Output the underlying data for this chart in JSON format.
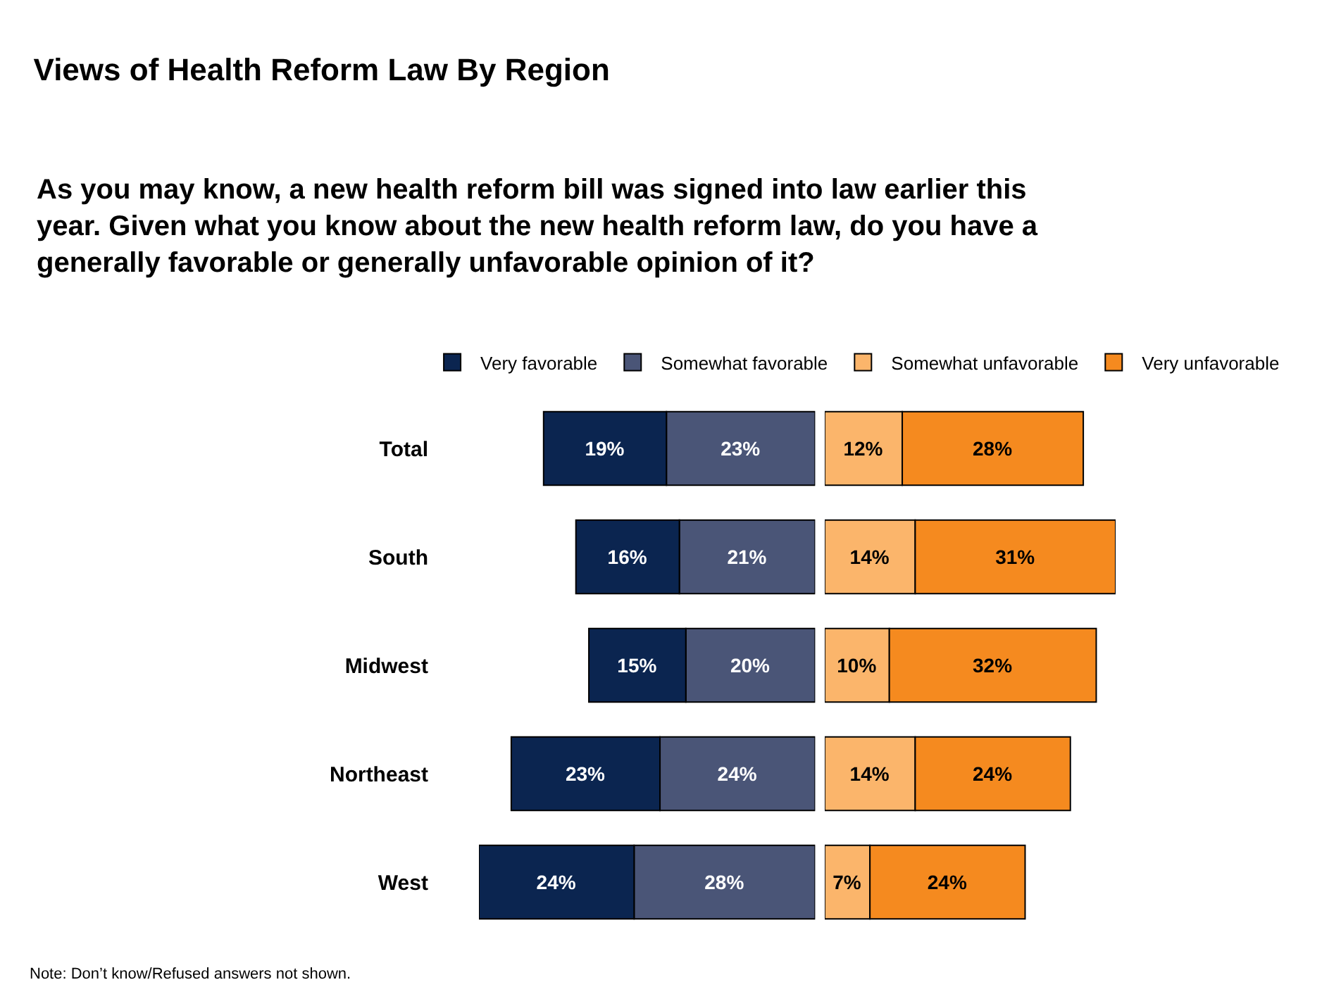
{
  "chart_data": [
    {
      "type": "bar",
      "orientation": "horizontal",
      "stacked": true,
      "title": "Views of Health Reform Law By Region",
      "subtitle": "As you may know, a new health reform bill was signed into law earlier this year. Given what you know about the new health reform law, do you have a generally favorable or generally unfavorable opinion of it?",
      "annotations": [
        "Note: Don’t know/Refused answers not shown."
      ],
      "categories": [
        "Total",
        "South",
        "Midwest",
        "Northeast",
        "West"
      ],
      "xlim": [
        52,
        0
      ],
      "tick_labels": "y",
      "legend": "top",
      "series": [
        {
          "name": "Somewhat favorable",
          "color": "#4a5577",
          "values": [
            23,
            21,
            20,
            24,
            28
          ],
          "value_labels": [
            "23%",
            "21%",
            "20%",
            "24%",
            "28%"
          ]
        },
        {
          "name": "Very favorable",
          "color": "#0b2550",
          "values": [
            19,
            16,
            15,
            23,
            24
          ],
          "value_labels": [
            "19%",
            "16%",
            "15%",
            "23%",
            "24%"
          ]
        }
      ]
    },
    {
      "type": "bar",
      "orientation": "horizontal",
      "stacked": true,
      "categories": [
        "Total",
        "South",
        "Midwest",
        "Northeast",
        "West"
      ],
      "xlim": [
        0,
        45
      ],
      "tick_labels": false,
      "legend": "top",
      "series": [
        {
          "name": "Somewhat unfavorable",
          "color": "#fbb56b",
          "values": [
            12,
            14,
            10,
            14,
            7
          ],
          "value_labels": [
            "12%",
            "14%",
            "10%",
            "14%",
            "7%"
          ]
        },
        {
          "name": "Very unfavorable",
          "color": "#f58a1f",
          "values": [
            28,
            31,
            32,
            24,
            24
          ],
          "value_labels": [
            "28%",
            "31%",
            "32%",
            "24%",
            "24%"
          ]
        }
      ]
    }
  ]
}
